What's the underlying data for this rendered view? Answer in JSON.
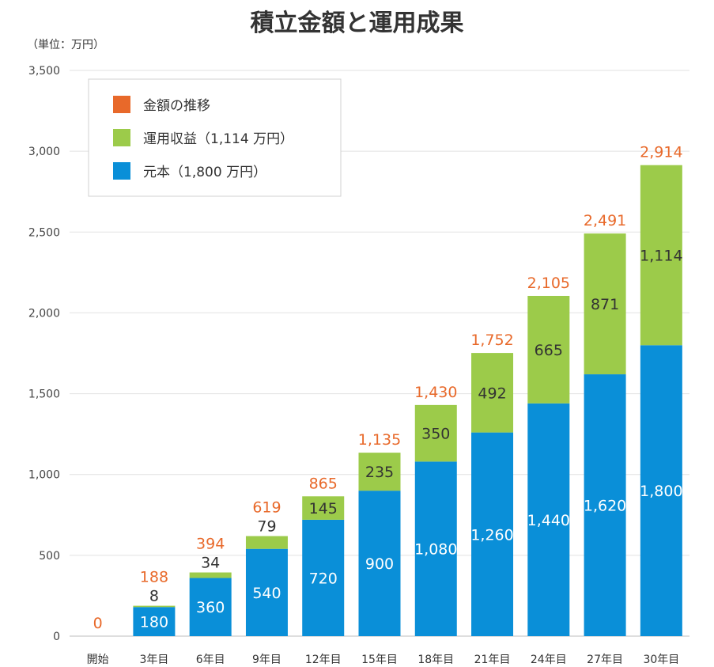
{
  "chart_data": {
    "type": "bar",
    "stacked": true,
    "title": "積立金額と運用成果",
    "unit": "（単位：万円）",
    "categories": [
      "開始",
      "3年目",
      "6年目",
      "9年目",
      "12年目",
      "15年目",
      "18年目",
      "21年目",
      "24年目",
      "27年目",
      "30年目"
    ],
    "series": [
      {
        "name": "元本（1,800 万円）",
        "color": "#0a8fd8",
        "values": [
          0,
          180,
          360,
          540,
          720,
          900,
          1080,
          1260,
          1440,
          1620,
          1800
        ],
        "labels": [
          "",
          "180",
          "360",
          "540",
          "720",
          "900",
          "1,080",
          "1,260",
          "1,440",
          "1,620",
          "1,800"
        ]
      },
      {
        "name": "運用収益（1,114 万円）",
        "color": "#9ccb4a",
        "values": [
          0,
          8,
          34,
          79,
          145,
          235,
          350,
          492,
          665,
          871,
          1114
        ],
        "labels": [
          "",
          "8",
          "34",
          "79",
          "145",
          "235",
          "350",
          "492",
          "665",
          "871",
          "1,114"
        ]
      }
    ],
    "totals": {
      "name": "金額の推移",
      "color": "#e8692a",
      "values": [
        0,
        188,
        394,
        619,
        865,
        1135,
        1430,
        1752,
        2105,
        2491,
        2914
      ],
      "labels": [
        "0",
        "188",
        "394",
        "619",
        "865",
        "1,135",
        "1,430",
        "1,752",
        "2,105",
        "2,491",
        "2,914"
      ]
    },
    "ylim": [
      0,
      3500
    ],
    "yticks": [
      0,
      500,
      1000,
      1500,
      2000,
      2500,
      3000,
      3500
    ],
    "ytick_labels": [
      "0",
      "500",
      "1,000",
      "1,500",
      "2,000",
      "2,500",
      "3,000",
      "3,500"
    ],
    "grid": true,
    "legend_position": "top-left",
    "legend": [
      {
        "name": "金額の推移",
        "color": "#e8692a"
      },
      {
        "name": "運用収益（1,114 万円）",
        "color": "#9ccb4a"
      },
      {
        "name": "元本（1,800 万円）",
        "color": "#0a8fd8"
      }
    ]
  }
}
